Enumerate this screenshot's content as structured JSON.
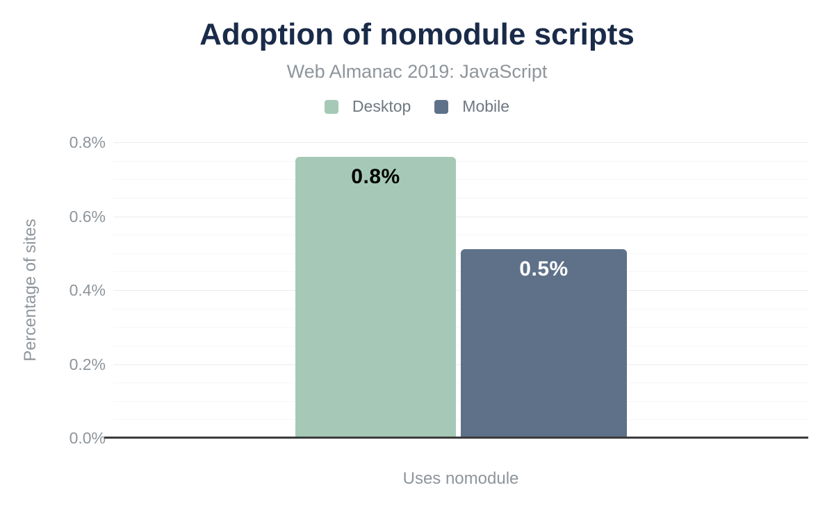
{
  "header": {
    "title": "Adoption of nomodule scripts",
    "subtitle": "Web Almanac 2019: JavaScript"
  },
  "legend": {
    "items": [
      {
        "label": "Desktop",
        "color": "#a5c9b6"
      },
      {
        "label": "Mobile",
        "color": "#5e7189"
      }
    ]
  },
  "chart_data": {
    "type": "bar",
    "title": "Adoption of nomodule scripts",
    "subtitle": "Web Almanac 2019: JavaScript",
    "categories": [
      "Uses nomodule"
    ],
    "series": [
      {
        "name": "Desktop",
        "values": [
          0.76
        ],
        "data_label": "0.8%",
        "color": "#a5c9b6",
        "label_color": "#000000"
      },
      {
        "name": "Mobile",
        "values": [
          0.51
        ],
        "data_label": "0.5%",
        "color": "#5e7189",
        "label_color": "#ffffff"
      }
    ],
    "xlabel": "Uses nomodule",
    "ylabel": "Percentage of sites",
    "ylim": [
      0,
      0.8
    ],
    "yticks": [
      {
        "value": 0,
        "label": "0.0%"
      },
      {
        "value": 0.2,
        "label": "0.2%"
      },
      {
        "value": 0.4,
        "label": "0.4%"
      },
      {
        "value": 0.6,
        "label": "0.6%"
      },
      {
        "value": 0.8,
        "label": "0.8%"
      }
    ],
    "minor_tick_step": 0.05,
    "major_tick_step": 0.2,
    "grid": true,
    "legend_position": "top"
  },
  "colors": {
    "title": "#1a2b49",
    "muted_text": "#8e959b",
    "legend_text": "#6f7880",
    "axis_line": "#3b3b3b",
    "major_gridline": "#ececec",
    "minor_gridline": "#f6f6f6",
    "background": "#ffffff"
  }
}
